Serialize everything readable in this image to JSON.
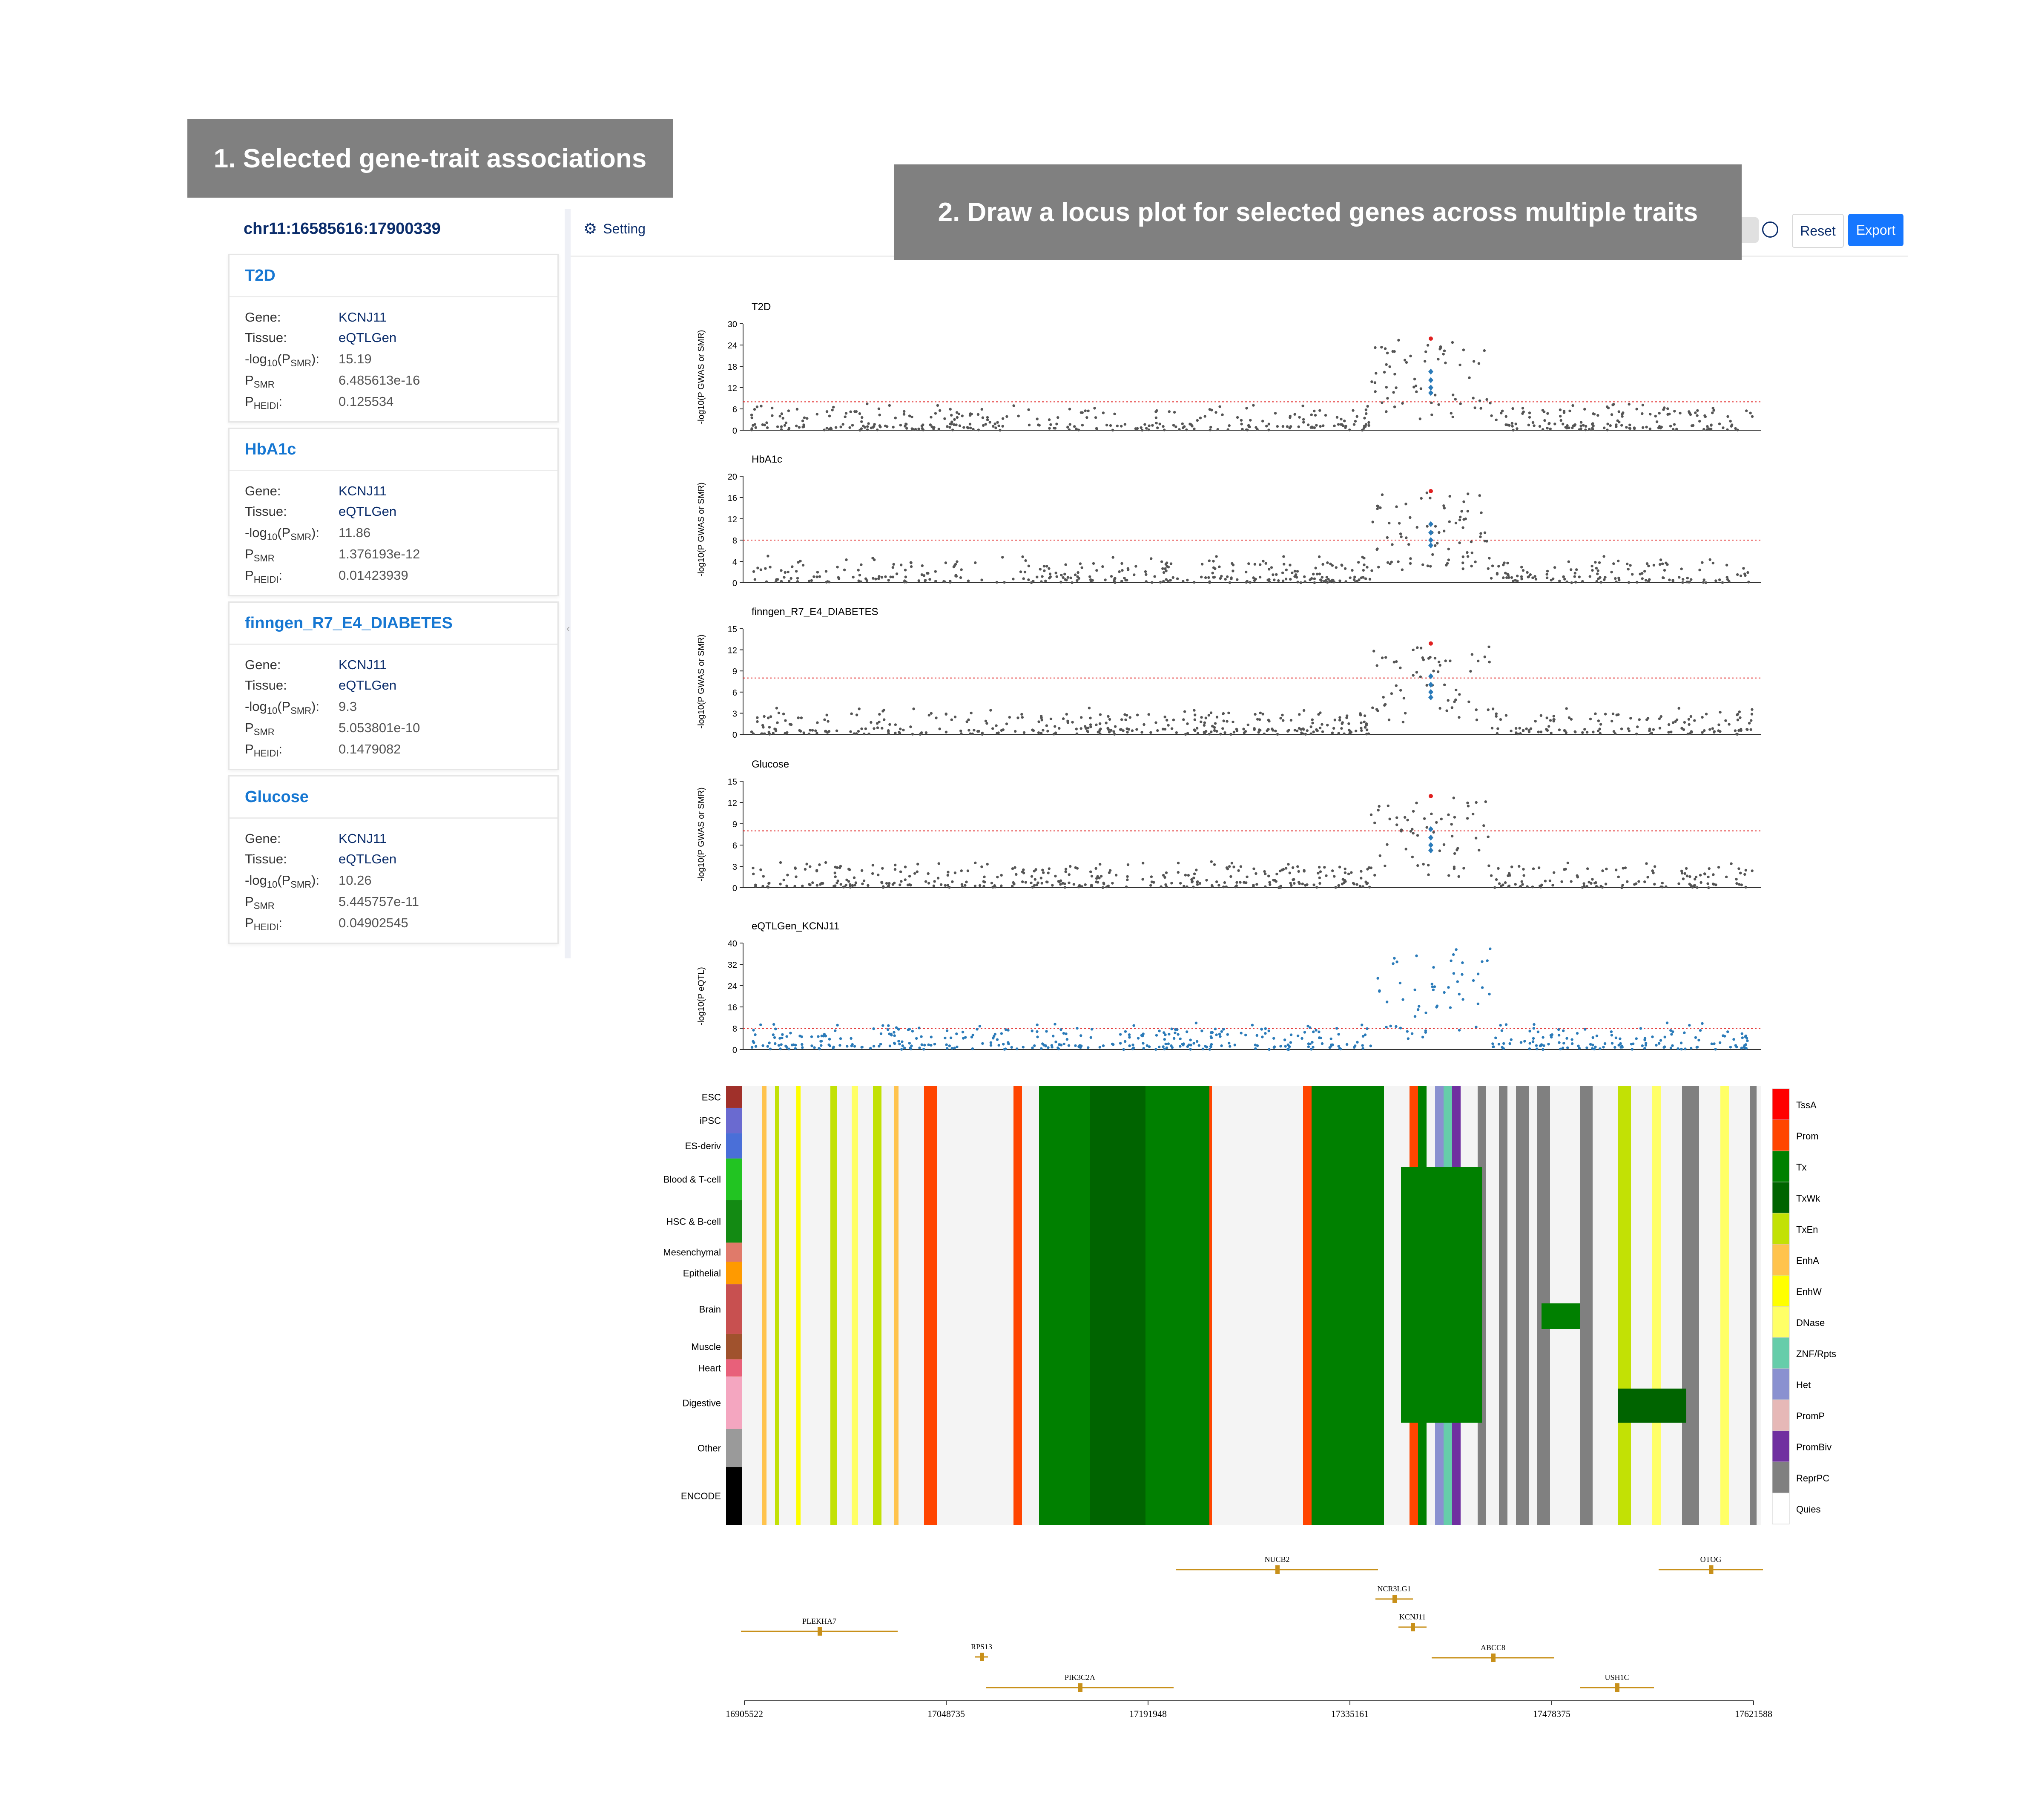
{
  "banners": {
    "step1": "1. Selected gene-trait associations",
    "step2": "2. Draw a locus plot for selected genes across multiple traits"
  },
  "left_panel": {
    "locus": "chr11:16585616:17900339",
    "field_labels": {
      "gene": "Gene:",
      "tissue": "Tissue:",
      "neglog": "-log",
      "neglog_sub": "10",
      "neglog_p": "(P",
      "neglog_psub": "SMR",
      "neglog_end": "):",
      "psmr": "P",
      "psmr_sub": "SMR",
      "pheidi": "P",
      "pheidi_sub": "HEIDI",
      "pheidi_end": ":"
    },
    "cards": [
      {
        "trait": "T2D",
        "gene": "KCNJ11",
        "tissue": "eQTLGen",
        "neglog_psmr": "15.19",
        "psmr": "6.485613e-16",
        "pheidi": "0.125534"
      },
      {
        "trait": "HbA1c",
        "gene": "KCNJ11",
        "tissue": "eQTLGen",
        "neglog_psmr": "11.86",
        "psmr": "1.376193e-12",
        "pheidi": "0.01423939"
      },
      {
        "trait": "finngen_R7_E4_DIABETES",
        "gene": "KCNJ11",
        "tissue": "eQTLGen",
        "neglog_psmr": "9.3",
        "psmr": "5.053801e-10",
        "pheidi": "0.1479082"
      },
      {
        "trait": "Glucose",
        "gene": "KCNJ11",
        "tissue": "eQTLGen",
        "neglog_psmr": "10.26",
        "psmr": "5.445757e-11",
        "pheidi": "0.04902545"
      }
    ]
  },
  "toolbar": {
    "setting_label": "Setting",
    "reset_label": "Reset",
    "export_label": "Export",
    "icons": [
      "gear-icon",
      "info-icon",
      "zoom-in-icon",
      "zoom-out-icon"
    ]
  },
  "chart_data": [
    {
      "type": "scatter",
      "title": "T2D",
      "ylabel": "-log10(P GWAS or SMR)",
      "ylim": [
        0,
        30
      ],
      "yticks": [
        "0",
        "6",
        "12",
        "18",
        "24",
        "30"
      ],
      "threshold": 8,
      "series": [
        {
          "name": "GWAS",
          "color": "#555555"
        },
        {
          "name": "SMR",
          "color": "#2b7bb9"
        },
        {
          "name": "lead",
          "color": "#e02020"
        }
      ]
    },
    {
      "type": "scatter",
      "title": "HbA1c",
      "ylabel": "-log10(P GWAS or SMR)",
      "ylim": [
        0,
        20
      ],
      "yticks": [
        "0",
        "4",
        "8",
        "12",
        "16",
        "20"
      ],
      "threshold": 8
    },
    {
      "type": "scatter",
      "title": "finngen_R7_E4_DIABETES",
      "ylabel": "-log10(P GWAS or SMR)",
      "ylim": [
        0,
        15
      ],
      "yticks": [
        "0",
        "3",
        "6",
        "9",
        "12",
        "15"
      ],
      "threshold": 8
    },
    {
      "type": "scatter",
      "title": "Glucose",
      "ylabel": "-log10(P GWAS or SMR)",
      "ylim": [
        0,
        15
      ],
      "yticks": [
        "0",
        "3",
        "6",
        "9",
        "12",
        "15"
      ],
      "threshold": 8
    },
    {
      "type": "scatter",
      "title": "eQTLGen_KCNJ11",
      "ylabel": "-log10(P eQTL)",
      "ylim": [
        0,
        40
      ],
      "yticks": [
        "0",
        "8",
        "16",
        "24",
        "32",
        "40"
      ],
      "threshold": 8,
      "color": "#2b7bb9"
    },
    {
      "type": "heatmap",
      "row_groups": [
        {
          "label": "ESC",
          "color": "#a0302a"
        },
        {
          "label": "iPSC",
          "color": "#6a6ad0"
        },
        {
          "label": "ES-deriv",
          "color": "#4a6fd8"
        },
        {
          "label": "Blood & T-cell",
          "color": "#22c422"
        },
        {
          "label": "HSC & B-cell",
          "color": "#138a13"
        },
        {
          "label": "Mesenchymal",
          "color": "#e07a6a"
        },
        {
          "label": "Epithelial",
          "color": "#ff9a00"
        },
        {
          "label": "Brain",
          "color": "#c85050"
        },
        {
          "label": "Muscle",
          "color": "#a0522d"
        },
        {
          "label": "Heart",
          "color": "#e8607a"
        },
        {
          "label": "Digestive",
          "color": "#f4a6c0"
        },
        {
          "label": "Other",
          "color": "#9a9a9a"
        },
        {
          "label": "ENCODE",
          "color": "#000000"
        }
      ],
      "legend": [
        {
          "label": "TssA",
          "color": "#ff0000"
        },
        {
          "label": "Prom",
          "color": "#ff4500"
        },
        {
          "label": "Tx",
          "color": "#008000"
        },
        {
          "label": "TxWk",
          "color": "#006400"
        },
        {
          "label": "TxEn",
          "color": "#c2e105"
        },
        {
          "label": "EnhA",
          "color": "#ffc34d"
        },
        {
          "label": "EnhW",
          "color": "#ffff00"
        },
        {
          "label": "DNase",
          "color": "#ffff66"
        },
        {
          "label": "ZNF/Rpts",
          "color": "#66cdaa"
        },
        {
          "label": "Het",
          "color": "#8a91d0"
        },
        {
          "label": "PromP",
          "color": "#e6b8b7"
        },
        {
          "label": "PromBiv",
          "color": "#7030a0"
        },
        {
          "label": "ReprPC",
          "color": "#808080"
        },
        {
          "label": "Quies",
          "color": "#ffffff"
        }
      ]
    },
    {
      "type": "table",
      "title": "genes",
      "genes": [
        "NUCB2",
        "OTOG",
        "NCR3LG1",
        "PLEKHA7",
        "KCNJ11",
        "RPS13",
        "ABCC8",
        "PIK3C2A",
        "USH1C"
      ],
      "x_ticks": [
        "16905522",
        "17048735",
        "17191948",
        "17335161",
        "17478375",
        "17621588"
      ]
    }
  ]
}
